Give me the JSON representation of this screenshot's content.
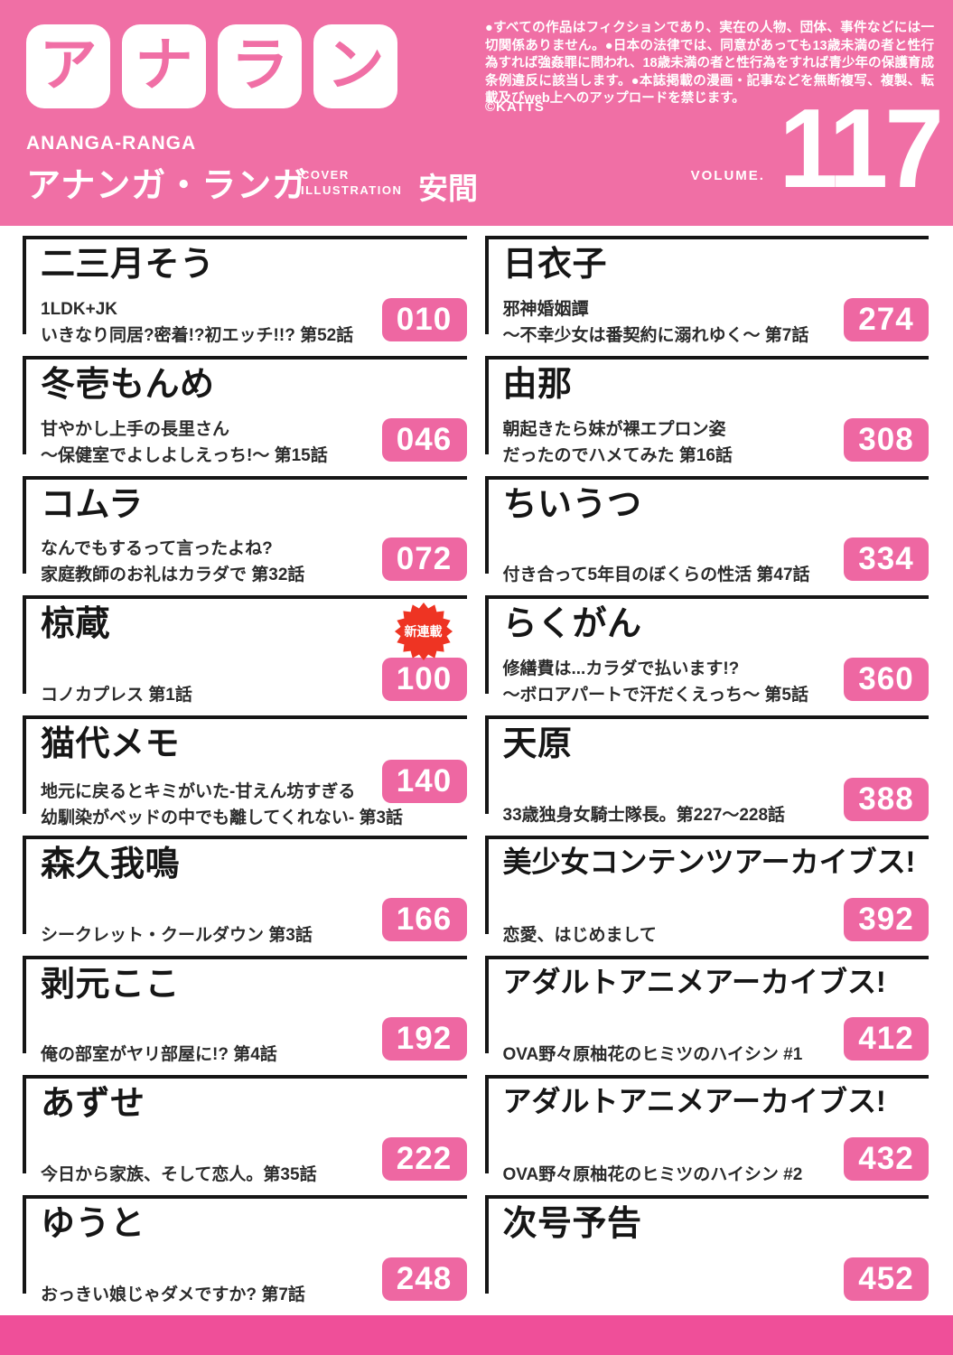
{
  "colors": {
    "header_pink": "#f06fa5",
    "footer_pink": "#ef4f99",
    "badge_pink": "#ee67a2",
    "new_badge_red": "#ee3423"
  },
  "labels": {
    "new_series": "新連載"
  },
  "header": {
    "logo_tiles": [
      "ア",
      "ナ",
      "ラ",
      "ン"
    ],
    "logo_latin": "ANANGA-RANGA",
    "logo_kana": "アナンガ・ランガ",
    "cover_label_line1": "COVER",
    "cover_label_line2": "ILLUSTRATION",
    "cover_artist": "安間",
    "disclaimer": "●すべての作品はフィクションであり、実在の人物、団体、事件などには一切関係ありません。●日本の法律では、同意があっても13歳未満の者と性行為すれば強姦罪に問われ、18歳未満の者と性行為をすれば青少年の保護育成条例違反に該当します。●本誌掲載の漫画・記事などを無断複写、複製、転載及びweb上へのアップロードを禁じます。",
    "copyright": "©KATTS",
    "volume_label": "VOLUME.",
    "volume_number": "117"
  },
  "toc": {
    "left": [
      {
        "author": "二三月そう",
        "lines": [
          "1LDK+JK",
          "いきなり同居?密着!?初エッチ!!? 第52話"
        ],
        "page": "010"
      },
      {
        "author": "冬壱もんめ",
        "lines": [
          "甘やかし上手の長里さん",
          "～保健室でよしよしえっち!～ 第15話"
        ],
        "page": "046"
      },
      {
        "author": "コムラ",
        "lines": [
          "なんでもするって言ったよね?",
          "家庭教師のお礼はカラダで 第32話"
        ],
        "page": "072"
      },
      {
        "author": "椋蔵",
        "lines": [
          "コノカプレス 第1話"
        ],
        "page": "100",
        "new_series": true
      },
      {
        "author": "猫代メモ",
        "lines": [
          "地元に戻るとキミがいた-甘えん坊すぎる",
          "幼馴染がベッドの中でも離してくれない- 第3話"
        ],
        "page": "140",
        "badge_raised": true
      },
      {
        "author": "森久我鳴",
        "lines": [
          "シークレット・クールダウン 第3話"
        ],
        "page": "166"
      },
      {
        "author": "剥元ここ",
        "lines": [
          "俺の部室がヤリ部屋に!? 第4話"
        ],
        "page": "192"
      },
      {
        "author": "あずせ",
        "lines": [
          "今日から家族、そして恋人。第35話"
        ],
        "page": "222"
      },
      {
        "author": "ゆうと",
        "lines": [
          "おっきい娘じゃダメですか? 第7話"
        ],
        "page": "248"
      }
    ],
    "right": [
      {
        "author": "日衣子",
        "lines": [
          "邪神婚姻譚",
          "～不幸少女は番契約に溺れゆく～ 第7話"
        ],
        "page": "274"
      },
      {
        "author": "由那",
        "lines": [
          "朝起きたら妹が裸エプロン姿",
          "だったのでハメてみた 第16話"
        ],
        "page": "308"
      },
      {
        "author": "ちいうつ",
        "lines": [
          "付き合って5年目のぼくらの性活 第47話"
        ],
        "page": "334"
      },
      {
        "author": "らくがん",
        "lines": [
          "修繕費は...カラダで払います!?",
          "～ボロアパートで汗だくえっち～ 第5話"
        ],
        "page": "360"
      },
      {
        "author": "天原",
        "lines": [
          "33歳独身女騎士隊長。第227～228話"
        ],
        "page": "388"
      },
      {
        "author": "美少女コンテンツアーカイブス!",
        "lines": [
          "恋愛、はじめまして"
        ],
        "page": "392"
      },
      {
        "author": "アダルトアニメアーカイブス!",
        "lines": [
          "OVA野々原柚花のヒミツのハイシン #1"
        ],
        "page": "412"
      },
      {
        "author": "アダルトアニメアーカイブス!",
        "lines": [
          "OVA野々原柚花のヒミツのハイシン #2"
        ],
        "page": "432"
      },
      {
        "author": "次号予告",
        "lines": [],
        "page": "452"
      }
    ]
  }
}
